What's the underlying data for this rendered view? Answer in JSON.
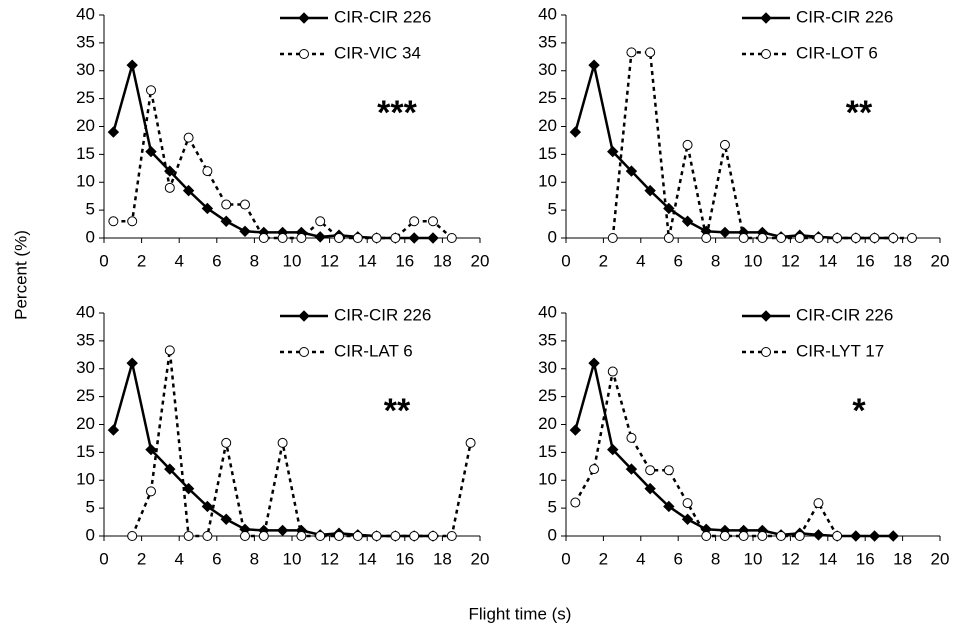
{
  "y_label": "Percent (%)",
  "x_label": "Flight time (s)",
  "chart_data": [
    {
      "type": "line",
      "annotation": "***",
      "xlim": [
        0,
        20
      ],
      "ylim": [
        0,
        40
      ],
      "xticks": [
        0,
        2,
        4,
        6,
        8,
        10,
        12,
        14,
        16,
        18,
        20
      ],
      "yticks": [
        0,
        5,
        10,
        15,
        20,
        25,
        30,
        35,
        40
      ],
      "series": [
        {
          "name": "CIR-CIR 226",
          "color": "#000000",
          "style": "solid",
          "marker": "diamond",
          "x": [
            0.5,
            1.5,
            2.5,
            3.5,
            4.5,
            5.5,
            6.5,
            7.5,
            8.5,
            9.5,
            10.5,
            11.5,
            12.5,
            13.5,
            14.5,
            15.5,
            16.5,
            17.5
          ],
          "values": [
            19,
            31,
            15.5,
            12,
            8.5,
            5.3,
            3,
            1.2,
            1,
            1,
            1,
            0.2,
            0.5,
            0.2,
            0,
            0,
            0,
            0
          ]
        },
        {
          "name": "CIR-VIC 34",
          "color": "#000000",
          "style": "dashed",
          "marker": "circle",
          "x": [
            0.5,
            1.5,
            2.5,
            3.5,
            4.5,
            5.5,
            6.5,
            7.5,
            8.5,
            9.5,
            10.5,
            11.5,
            12.5,
            13.5,
            14.5,
            15.5,
            16.5,
            17.5,
            18.5
          ],
          "values": [
            3,
            3,
            26.5,
            9,
            18,
            12,
            6,
            6,
            0,
            0,
            0,
            3,
            0,
            0,
            0,
            0,
            3,
            3,
            0
          ]
        }
      ]
    },
    {
      "type": "line",
      "annotation": "**",
      "xlim": [
        0,
        20
      ],
      "ylim": [
        0,
        40
      ],
      "xticks": [
        0,
        2,
        4,
        6,
        8,
        10,
        12,
        14,
        16,
        18,
        20
      ],
      "yticks": [
        0,
        5,
        10,
        15,
        20,
        25,
        30,
        35,
        40
      ],
      "series": [
        {
          "name": "CIR-CIR 226",
          "color": "#000000",
          "style": "solid",
          "marker": "diamond",
          "x": [
            0.5,
            1.5,
            2.5,
            3.5,
            4.5,
            5.5,
            6.5,
            7.5,
            8.5,
            9.5,
            10.5,
            11.5,
            12.5,
            13.5,
            14.5,
            15.5,
            16.5,
            17.5
          ],
          "values": [
            19,
            31,
            15.5,
            12,
            8.5,
            5.3,
            3,
            1.2,
            1,
            1,
            1,
            0.2,
            0.5,
            0.2,
            0,
            0,
            0,
            0
          ]
        },
        {
          "name": "CIR-LOT 6",
          "color": "#000000",
          "style": "dashed",
          "marker": "circle",
          "x": [
            2.5,
            3.5,
            4.5,
            5.5,
            6.5,
            7.5,
            8.5,
            9.5,
            10.5,
            11.5,
            12.5,
            13.5,
            14.5,
            15.5,
            16.5,
            17.5,
            18.5
          ],
          "values": [
            0,
            33.3,
            33.3,
            0,
            16.7,
            0,
            16.7,
            0,
            0,
            0,
            0,
            0,
            0,
            0,
            0,
            0,
            0
          ]
        }
      ]
    },
    {
      "type": "line",
      "annotation": "**",
      "xlim": [
        0,
        20
      ],
      "ylim": [
        0,
        40
      ],
      "xticks": [
        0,
        2,
        4,
        6,
        8,
        10,
        12,
        14,
        16,
        18,
        20
      ],
      "yticks": [
        0,
        5,
        10,
        15,
        20,
        25,
        30,
        35,
        40
      ],
      "series": [
        {
          "name": "CIR-CIR 226",
          "color": "#000000",
          "style": "solid",
          "marker": "diamond",
          "x": [
            0.5,
            1.5,
            2.5,
            3.5,
            4.5,
            5.5,
            6.5,
            7.5,
            8.5,
            9.5,
            10.5,
            11.5,
            12.5,
            13.5,
            14.5,
            15.5,
            16.5,
            17.5
          ],
          "values": [
            19,
            31,
            15.5,
            12,
            8.5,
            5.3,
            3,
            1.2,
            1,
            1,
            1,
            0.2,
            0.5,
            0.2,
            0,
            0,
            0,
            0
          ]
        },
        {
          "name": "CIR-LAT 6",
          "color": "#000000",
          "style": "dashed",
          "marker": "circle",
          "x": [
            1.5,
            2.5,
            3.5,
            4.5,
            5.5,
            6.5,
            7.5,
            8.5,
            9.5,
            10.5,
            11.5,
            12.5,
            13.5,
            14.5,
            15.5,
            16.5,
            17.5,
            18.5,
            19.5
          ],
          "values": [
            0,
            8,
            33.3,
            0,
            0,
            16.7,
            0,
            0,
            16.7,
            0,
            0,
            0,
            0,
            0,
            0,
            0,
            0,
            0,
            16.7
          ]
        }
      ]
    },
    {
      "type": "line",
      "annotation": "*",
      "xlim": [
        0,
        20
      ],
      "ylim": [
        0,
        40
      ],
      "xticks": [
        0,
        2,
        4,
        6,
        8,
        10,
        12,
        14,
        16,
        18,
        20
      ],
      "yticks": [
        0,
        5,
        10,
        15,
        20,
        25,
        30,
        35,
        40
      ],
      "series": [
        {
          "name": "CIR-CIR 226",
          "color": "#000000",
          "style": "solid",
          "marker": "diamond",
          "x": [
            0.5,
            1.5,
            2.5,
            3.5,
            4.5,
            5.5,
            6.5,
            7.5,
            8.5,
            9.5,
            10.5,
            11.5,
            12.5,
            13.5,
            14.5,
            15.5,
            16.5,
            17.5
          ],
          "values": [
            19,
            31,
            15.5,
            12,
            8.5,
            5.3,
            3,
            1.2,
            1,
            1,
            1,
            0.2,
            0.5,
            0.2,
            0,
            0,
            0,
            0
          ]
        },
        {
          "name": "CIR-LYT 17",
          "color": "#000000",
          "style": "dashed",
          "marker": "circle",
          "x": [
            0.5,
            1.5,
            2.5,
            3.5,
            4.5,
            5.5,
            6.5,
            7.5,
            8.5,
            9.5,
            10.5,
            11.5,
            12.5,
            13.5,
            14.5
          ],
          "values": [
            6,
            12,
            29.5,
            17.6,
            11.8,
            11.8,
            5.9,
            0,
            0,
            0,
            0,
            0,
            0,
            5.9,
            0
          ]
        }
      ]
    }
  ]
}
